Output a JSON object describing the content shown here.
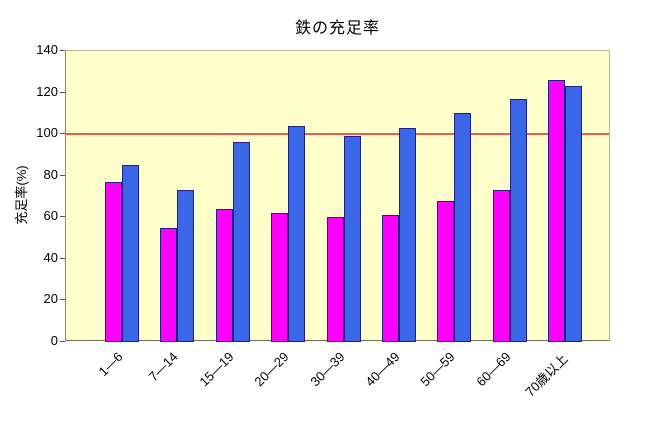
{
  "chart_data": {
    "type": "bar",
    "title": "鉄の充足率",
    "ylabel": "充足率(%)",
    "xlabel": "",
    "ylim": [
      0,
      140
    ],
    "yticks": [
      0,
      20,
      40,
      60,
      80,
      100,
      120,
      140
    ],
    "categories": [
      "1—6",
      "7—14",
      "15—19",
      "20—29",
      "30—39",
      "40—49",
      "50—59",
      "60—69",
      "70歳以上"
    ],
    "series": [
      {
        "name": "magenta",
        "color": "#FF00FF",
        "values": [
          77,
          55,
          64,
          62,
          60,
          61,
          68,
          73,
          126
        ]
      },
      {
        "name": "blue",
        "color": "#3C66E8",
        "values": [
          85,
          73,
          96,
          104,
          99,
          103,
          110,
          117,
          123
        ]
      }
    ],
    "reference_line": {
      "value": 100,
      "color": "#EF5B49"
    },
    "legend_position": "none",
    "grid": false,
    "plot_background": "#FFFFCC",
    "bar_border_color": "#202080"
  }
}
